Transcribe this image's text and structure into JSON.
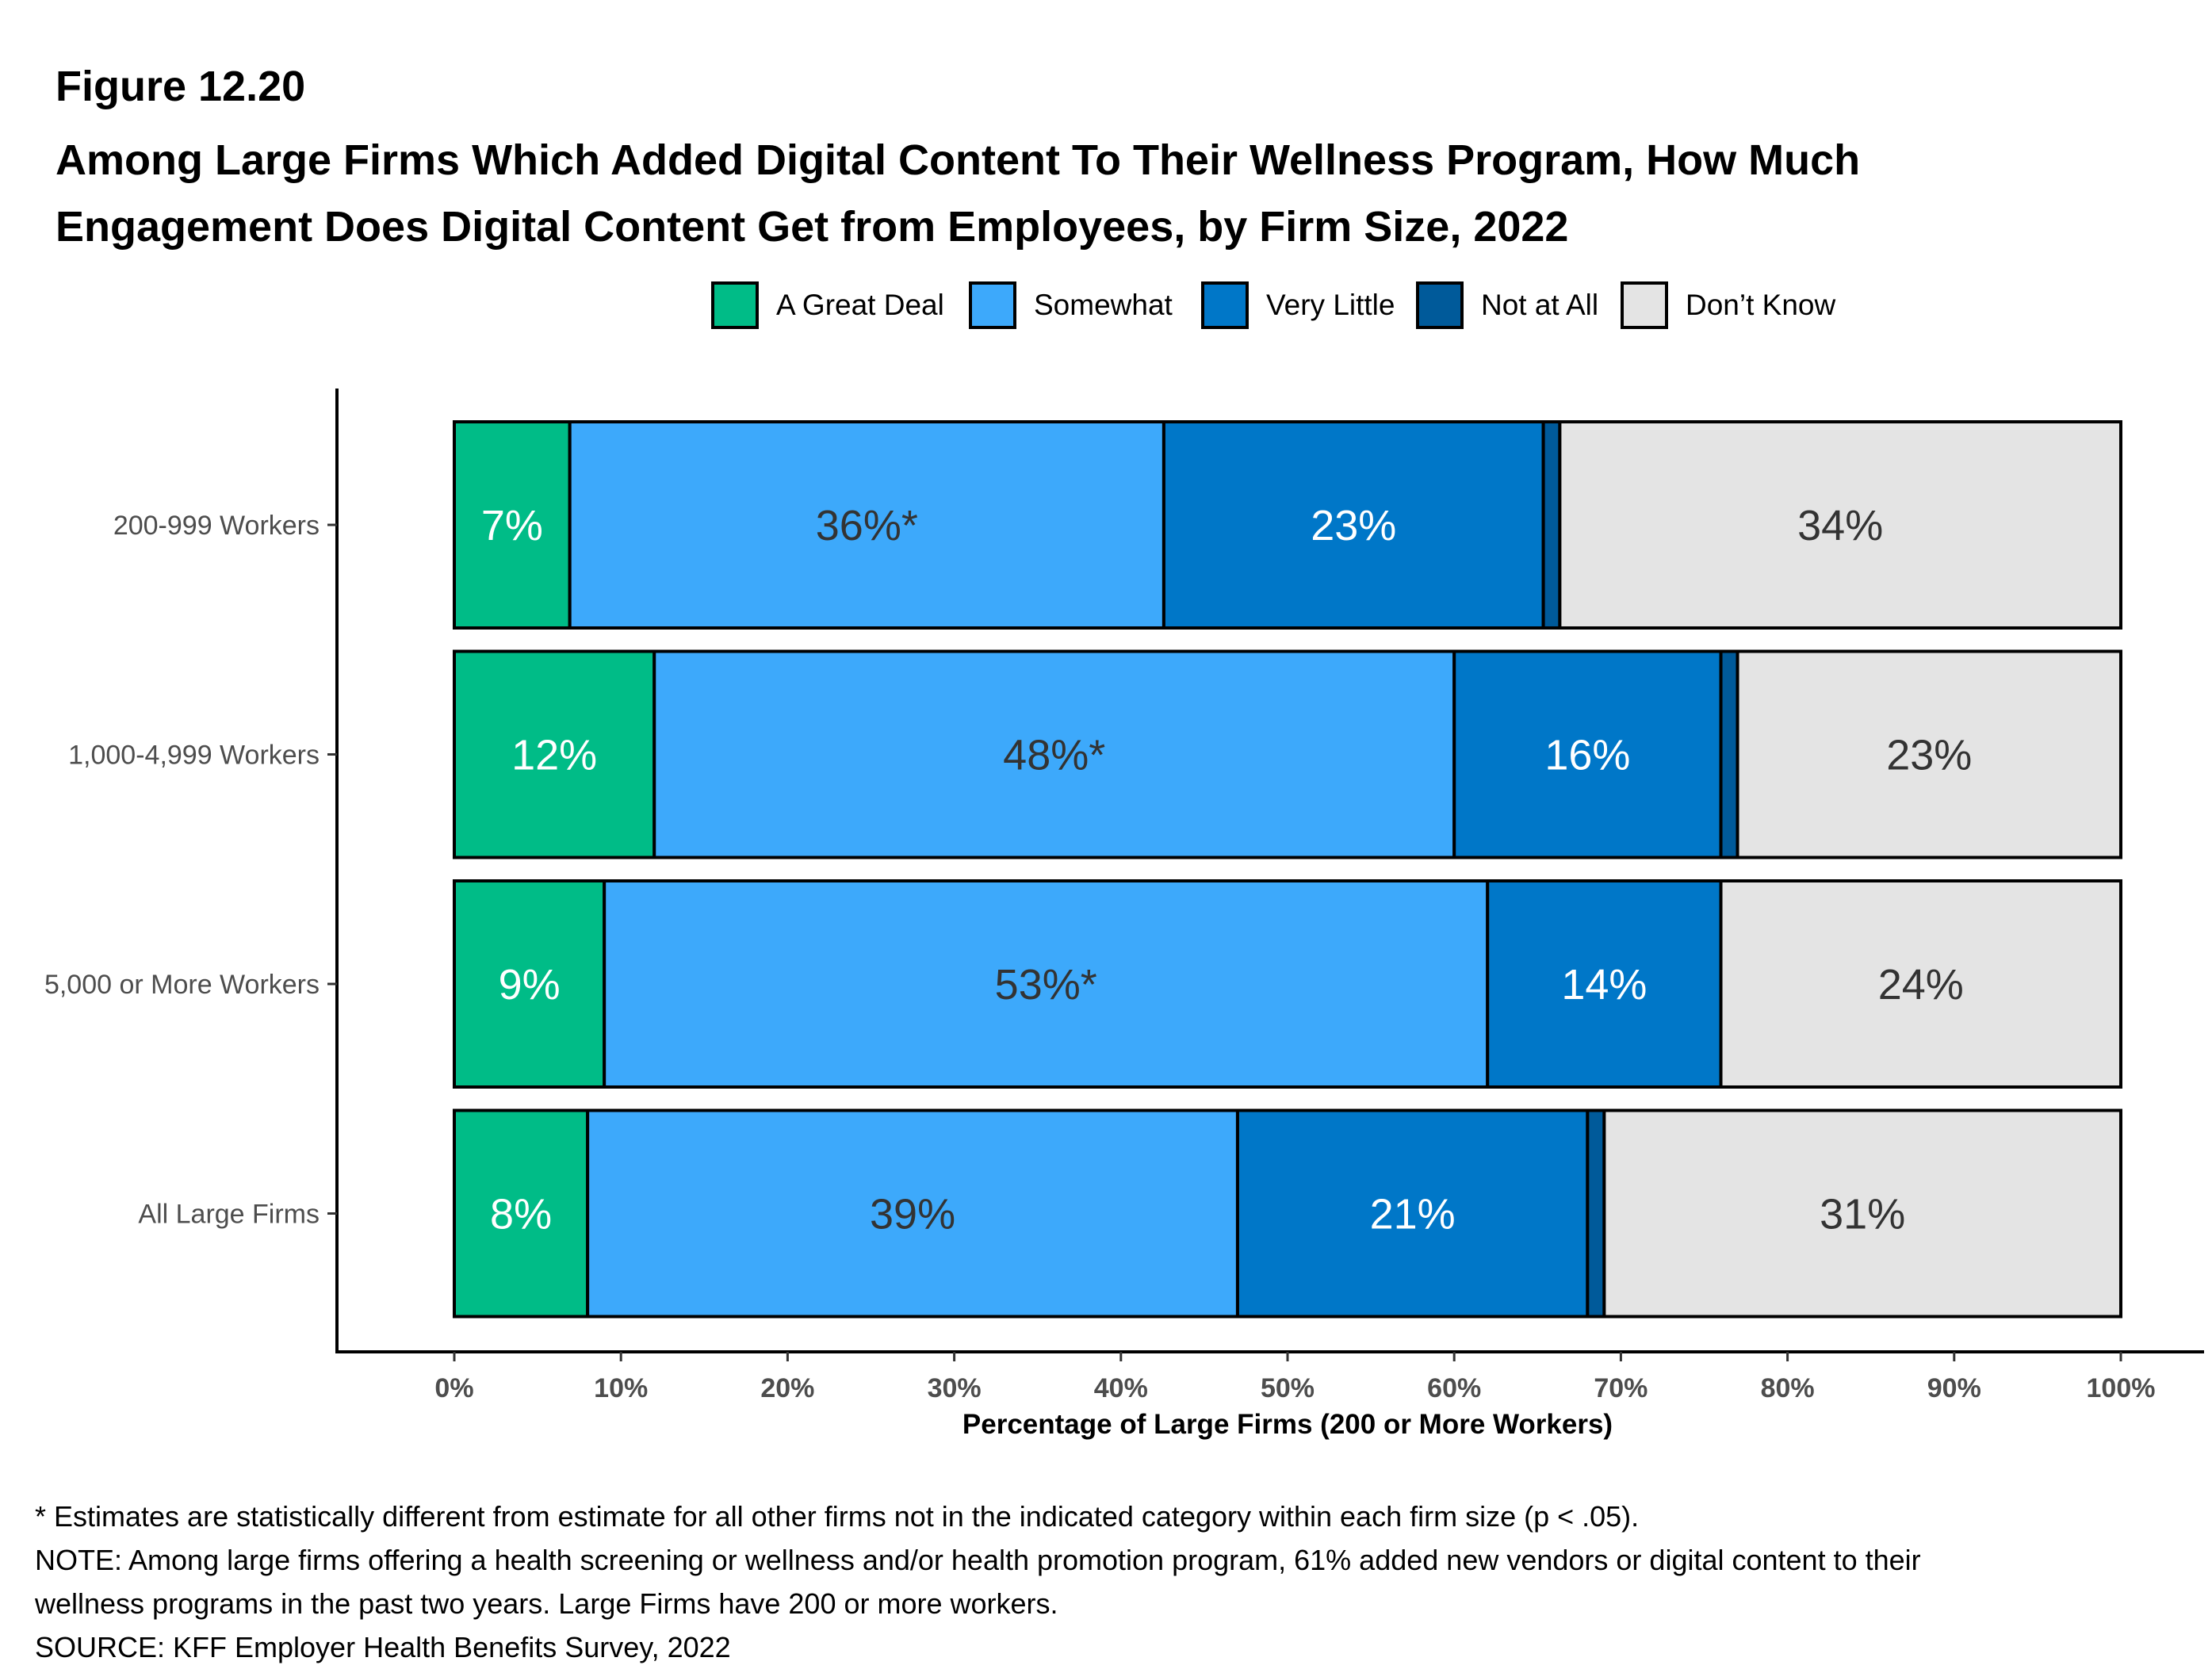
{
  "figure_number": "Figure 12.20",
  "title_lines": [
    "Among Large Firms Which Added Digital Content To Their Wellness Program, How Much",
    "Engagement Does Digital Content Get from Employees, by Firm Size, 2022"
  ],
  "footnotes": {
    "significance": "* Estimates are statistically different from estimate for all other firms not in the indicated category within each firm size (p < .05).",
    "note_line1": "NOTE: Among large firms offering a health screening or wellness and/or health promotion program, 61% added new vendors or digital content to their",
    "note_line2": "wellness programs in the past two years. Large Firms have 200 or more workers.",
    "source": "SOURCE: KFF Employer Health Benefits Survey, 2022"
  },
  "chart_data": {
    "type": "bar",
    "orientation": "horizontal",
    "stacked": true,
    "title": "Among Large Firms Which Added Digital Content To Their Wellness Program, How Much Engagement Does Digital Content Get from Employees, by Firm Size, 2022",
    "xlabel": "Percentage of Large Firms (200 or More Workers)",
    "ylabel": "",
    "xlim": [
      0,
      100
    ],
    "x_ticks": [
      "0%",
      "10%",
      "20%",
      "30%",
      "40%",
      "50%",
      "60%",
      "70%",
      "80%",
      "90%",
      "100%"
    ],
    "grid": false,
    "legend_position": "top",
    "categories": [
      "200-999 Workers",
      "1,000-4,999 Workers",
      "5,000 or More Workers",
      "All Large Firms"
    ],
    "series": [
      {
        "name": "A Great Deal",
        "color": "#00BC87",
        "label_color": "#FFFFFF",
        "values": [
          7,
          12,
          9,
          8
        ],
        "labels": [
          "7%",
          "12%",
          "9%",
          "8%"
        ]
      },
      {
        "name": "Somewhat",
        "color": "#3DA9FB",
        "label_color": "#333333",
        "values": [
          36,
          48,
          53,
          39
        ],
        "labels": [
          "36%*",
          "48%*",
          "53%*",
          "39%"
        ]
      },
      {
        "name": "Very Little",
        "color": "#0077C8",
        "label_color": "#FFFFFF",
        "values": [
          23,
          16,
          14,
          21
        ],
        "labels": [
          "23%",
          "16%",
          "14%",
          "21%"
        ]
      },
      {
        "name": "Not at All",
        "color": "#005A9A",
        "label_color": "#FFFFFF",
        "values": [
          1,
          1,
          0,
          1
        ],
        "labels": [
          "",
          "",
          "",
          ""
        ]
      },
      {
        "name": "Don’t Know",
        "color": "#E4E4E4",
        "label_color": "#333333",
        "values": [
          34,
          23,
          24,
          31
        ],
        "labels": [
          "34%",
          "23%",
          "24%",
          "31%"
        ]
      }
    ]
  }
}
